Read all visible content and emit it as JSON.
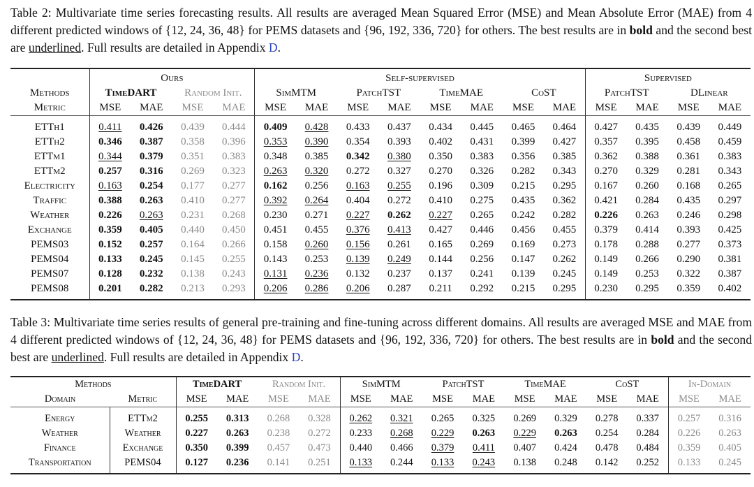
{
  "table2": {
    "caption": {
      "label": "Table 2:",
      "text_1": " Multivariate time series forecasting results. All results are averaged Mean Squared Error (MSE) and Mean Absolute Error (MAE) from 4 different predicted windows of {12, 24, 36, 48} for PEMS datasets and {96, 192, 336, 720} for others. The best results are in ",
      "bold_word": "bold",
      "text_2": " and the second best are ",
      "underline_word": "underlined",
      "text_3": ". Full results are detailed in Appendix ",
      "appendix_link": "D",
      "text_4": "."
    },
    "groups": [
      "Ours",
      "Self-supervised",
      "Supervised"
    ],
    "methods_label": "Methods",
    "metric_label": "Metric",
    "methods": [
      "TimeDART",
      "Random Init.",
      "SimMTM",
      "PatchTST",
      "TimeMAE",
      "CoST",
      "PatchTST",
      "DLinear"
    ],
    "metrics": [
      "MSE",
      "MAE"
    ],
    "rows": [
      {
        "dataset": "ETTh1",
        "values": [
          "0.411",
          "0.426",
          "0.439",
          "0.444",
          "0.409",
          "0.428",
          "0.433",
          "0.437",
          "0.434",
          "0.445",
          "0.465",
          "0.464",
          "0.427",
          "0.435",
          "0.439",
          "0.449"
        ],
        "styles": [
          "u",
          "b",
          "",
          "",
          "b",
          "u",
          "",
          "",
          "",
          "",
          "",
          "",
          "",
          "",
          "",
          ""
        ]
      },
      {
        "dataset": "ETTh2",
        "values": [
          "0.346",
          "0.387",
          "0.358",
          "0.396",
          "0.353",
          "0.390",
          "0.354",
          "0.393",
          "0.402",
          "0.431",
          "0.399",
          "0.427",
          "0.357",
          "0.395",
          "0.458",
          "0.459"
        ],
        "styles": [
          "b",
          "b",
          "",
          "",
          "u",
          "u",
          "",
          "",
          "",
          "",
          "",
          "",
          "",
          "",
          "",
          ""
        ]
      },
      {
        "dataset": "ETTm1",
        "values": [
          "0.344",
          "0.379",
          "0.351",
          "0.383",
          "0.348",
          "0.385",
          "0.342",
          "0.380",
          "0.350",
          "0.383",
          "0.356",
          "0.385",
          "0.362",
          "0.388",
          "0.361",
          "0.383"
        ],
        "styles": [
          "u",
          "b",
          "",
          "",
          "",
          "",
          "b",
          "u",
          "",
          "",
          "",
          "",
          "",
          "",
          "",
          ""
        ]
      },
      {
        "dataset": "ETTm2",
        "values": [
          "0.257",
          "0.316",
          "0.269",
          "0.323",
          "0.263",
          "0.320",
          "0.272",
          "0.327",
          "0.270",
          "0.326",
          "0.282",
          "0.343",
          "0.270",
          "0.329",
          "0.281",
          "0.343"
        ],
        "styles": [
          "b",
          "b",
          "",
          "",
          "u",
          "u",
          "",
          "",
          "",
          "",
          "",
          "",
          "",
          "",
          "",
          ""
        ]
      },
      {
        "dataset": "Electricity",
        "values": [
          "0.163",
          "0.254",
          "0.177",
          "0.277",
          "0.162",
          "0.256",
          "0.163",
          "0.255",
          "0.196",
          "0.309",
          "0.215",
          "0.295",
          "0.167",
          "0.260",
          "0.168",
          "0.265"
        ],
        "styles": [
          "u",
          "b",
          "",
          "",
          "b",
          "",
          "u",
          "u",
          "",
          "",
          "",
          "",
          "",
          "",
          "",
          ""
        ]
      },
      {
        "dataset": "Traffic",
        "values": [
          "0.388",
          "0.263",
          "0.410",
          "0.277",
          "0.392",
          "0.264",
          "0.404",
          "0.272",
          "0.410",
          "0.275",
          "0.435",
          "0.362",
          "0.421",
          "0.284",
          "0.435",
          "0.297"
        ],
        "styles": [
          "b",
          "b",
          "",
          "",
          "u",
          "u",
          "",
          "",
          "",
          "",
          "",
          "",
          "",
          "",
          "",
          ""
        ]
      },
      {
        "dataset": "Weather",
        "values": [
          "0.226",
          "0.263",
          "0.231",
          "0.268",
          "0.230",
          "0.271",
          "0.227",
          "0.262",
          "0.227",
          "0.265",
          "0.242",
          "0.282",
          "0.226",
          "0.263",
          "0.246",
          "0.298"
        ],
        "styles": [
          "b",
          "u",
          "",
          "",
          "",
          "",
          "u",
          "b",
          "u",
          "",
          "",
          "",
          "b",
          "",
          "",
          ""
        ]
      },
      {
        "dataset": "Exchange",
        "values": [
          "0.359",
          "0.405",
          "0.440",
          "0.450",
          "0.451",
          "0.455",
          "0.376",
          "0.413",
          "0.427",
          "0.446",
          "0.456",
          "0.455",
          "0.379",
          "0.414",
          "0.393",
          "0.425"
        ],
        "styles": [
          "b",
          "b",
          "",
          "",
          "",
          "",
          "u",
          "u",
          "",
          "",
          "",
          "",
          "",
          "",
          "",
          ""
        ]
      },
      {
        "dataset": "PEMS03",
        "values": [
          "0.152",
          "0.257",
          "0.164",
          "0.266",
          "0.158",
          "0.260",
          "0.156",
          "0.261",
          "0.165",
          "0.269",
          "0.169",
          "0.273",
          "0.178",
          "0.288",
          "0.277",
          "0.373"
        ],
        "styles": [
          "b",
          "b",
          "",
          "",
          "",
          "u",
          "u",
          "",
          "",
          "",
          "",
          "",
          "",
          "",
          "",
          ""
        ]
      },
      {
        "dataset": "PEMS04",
        "values": [
          "0.133",
          "0.245",
          "0.145",
          "0.255",
          "0.143",
          "0.253",
          "0.139",
          "0.249",
          "0.144",
          "0.256",
          "0.147",
          "0.262",
          "0.149",
          "0.266",
          "0.290",
          "0.381"
        ],
        "styles": [
          "b",
          "b",
          "",
          "",
          "",
          "",
          "u",
          "u",
          "",
          "",
          "",
          "",
          "",
          "",
          "",
          ""
        ]
      },
      {
        "dataset": "PEMS07",
        "values": [
          "0.128",
          "0.232",
          "0.138",
          "0.243",
          "0.131",
          "0.236",
          "0.132",
          "0.237",
          "0.137",
          "0.241",
          "0.139",
          "0.245",
          "0.149",
          "0.253",
          "0.322",
          "0.387"
        ],
        "styles": [
          "b",
          "b",
          "",
          "",
          "u",
          "u",
          "",
          "",
          "",
          "",
          "",
          "",
          "",
          "",
          "",
          ""
        ]
      },
      {
        "dataset": "PEMS08",
        "values": [
          "0.201",
          "0.282",
          "0.213",
          "0.293",
          "0.206",
          "0.286",
          "0.206",
          "0.287",
          "0.211",
          "0.292",
          "0.215",
          "0.295",
          "0.230",
          "0.295",
          "0.359",
          "0.402"
        ],
        "styles": [
          "b",
          "b",
          "",
          "",
          "u",
          "u",
          "u",
          "",
          "",
          "",
          "",
          "",
          "",
          "",
          "",
          ""
        ]
      }
    ]
  },
  "table3": {
    "caption": {
      "label": "Table 3:",
      "text_1": " Multivariate time series results of general pre-training and fine-tuning across different domains. All results are averaged MSE and MAE from 4 different predicted windows of {12, 24, 36, 48} for PEMS datasets and {96, 192, 336, 720} for others. The best results are in ",
      "bold_word": "bold",
      "text_2": " and the second best are ",
      "underline_word": "underlined",
      "text_3": ". Full results are detailed in Appendix ",
      "appendix_link": "D",
      "text_4": "."
    },
    "methods_label": "Methods",
    "domain_label": "Domain",
    "metric_label": "Metric",
    "methods": [
      "TimeDART",
      "Random Init.",
      "SimMTM",
      "PatchTST",
      "TimeMAE",
      "CoST",
      "In-Domain"
    ],
    "metrics": [
      "MSE",
      "MAE"
    ],
    "rows": [
      {
        "domain": "Energy",
        "dataset": "ETTm2",
        "values": [
          "0.255",
          "0.313",
          "0.268",
          "0.328",
          "0.262",
          "0.321",
          "0.265",
          "0.325",
          "0.269",
          "0.329",
          "0.278",
          "0.337",
          "0.257",
          "0.316"
        ],
        "styles": [
          "b",
          "b",
          "",
          "",
          "u",
          "u",
          "",
          "",
          "",
          "",
          "",
          "",
          "",
          ""
        ]
      },
      {
        "domain": "Weather",
        "dataset": "Weather",
        "values": [
          "0.227",
          "0.263",
          "0.238",
          "0.272",
          "0.233",
          "0.268",
          "0.229",
          "0.263",
          "0.229",
          "0.263",
          "0.254",
          "0.284",
          "0.226",
          "0.263"
        ],
        "styles": [
          "b",
          "b",
          "",
          "",
          "",
          "u",
          "u",
          "b",
          "u",
          "b",
          "",
          "",
          "",
          ""
        ]
      },
      {
        "domain": "Finance",
        "dataset": "Exchange",
        "values": [
          "0.350",
          "0.399",
          "0.457",
          "0.473",
          "0.440",
          "0.466",
          "0.379",
          "0.411",
          "0.407",
          "0.424",
          "0.478",
          "0.484",
          "0.359",
          "0.405"
        ],
        "styles": [
          "b",
          "b",
          "",
          "",
          "",
          "",
          "u",
          "u",
          "",
          "",
          "",
          "",
          "",
          ""
        ]
      },
      {
        "domain": "Transportation",
        "dataset": "PEMS04",
        "values": [
          "0.127",
          "0.236",
          "0.141",
          "0.251",
          "0.133",
          "0.244",
          "0.133",
          "0.243",
          "0.138",
          "0.248",
          "0.142",
          "0.252",
          "0.133",
          "0.245"
        ],
        "styles": [
          "b",
          "b",
          "",
          "",
          "u",
          "",
          "u",
          "u",
          "",
          "",
          "",
          "",
          "",
          ""
        ]
      }
    ]
  }
}
